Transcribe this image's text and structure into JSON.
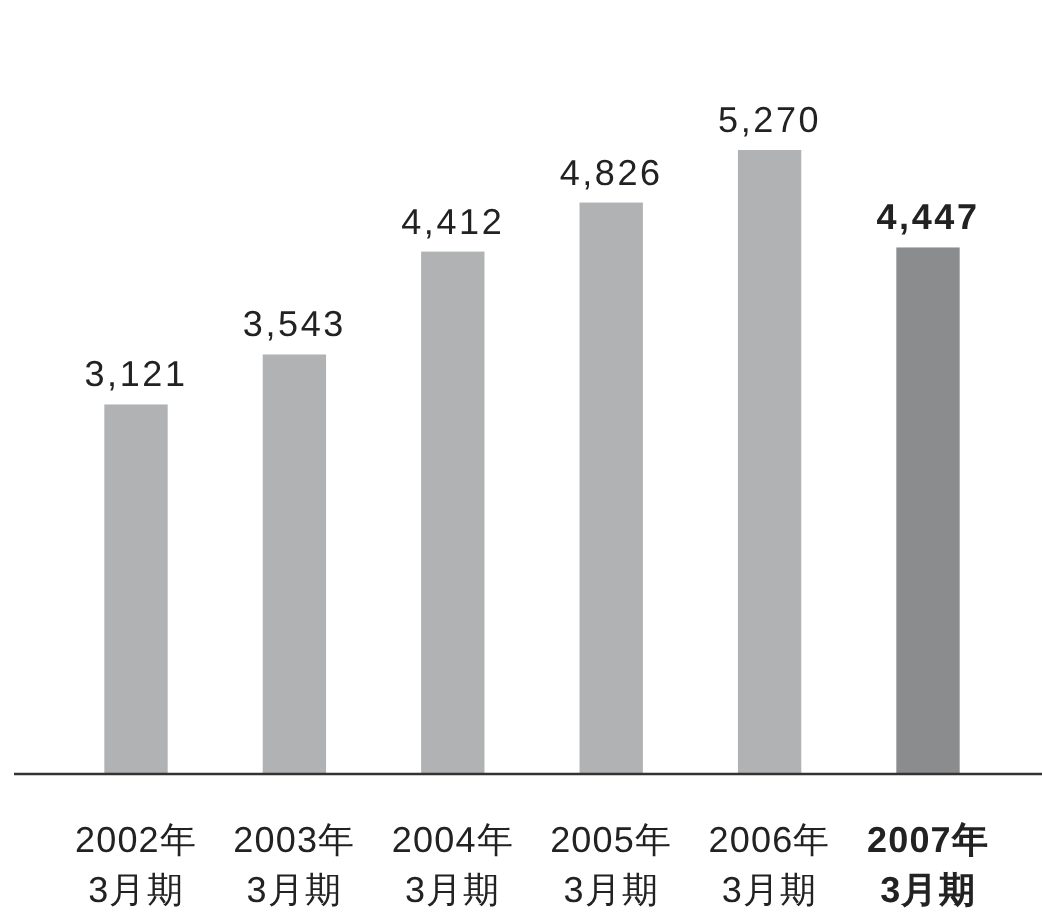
{
  "chart_data": {
    "type": "bar",
    "categories": [
      "2002年\n3月期",
      "2003年\n3月期",
      "2004年\n3月期",
      "2005年\n3月期",
      "2006年\n3月期",
      "2007年\n3月期"
    ],
    "values": [
      3121,
      3543,
      4412,
      4826,
      5270,
      4447
    ],
    "value_labels": [
      "3,121",
      "3,543",
      "4,412",
      "4,826",
      "5,270",
      "4,447"
    ],
    "colors": [
      "#b1b2b4",
      "#b1b2b4",
      "#b1b2b4",
      "#b1b2b4",
      "#b1b2b4",
      "#8b8c8e"
    ]
  }
}
